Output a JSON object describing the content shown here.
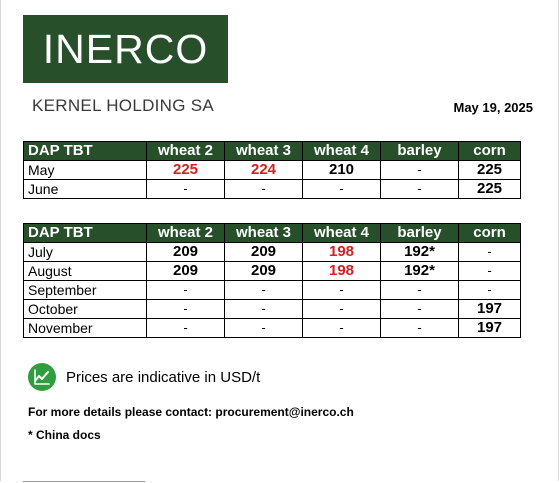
{
  "brand": {
    "logo_text": "INERCO",
    "colors": {
      "primary": "#264f2a",
      "accent_red": "#d42020",
      "icon_green": "#2f9e3e"
    }
  },
  "header": {
    "company": "KERNEL HOLDING SA",
    "date": "May 19, 2025"
  },
  "tables": [
    {
      "columns": [
        "DAP TBT",
        "wheat 2",
        "wheat 3",
        "wheat 4",
        "barley",
        "corn"
      ],
      "rows": [
        {
          "month": "May",
          "cells": [
            {
              "v": "225",
              "red": true
            },
            {
              "v": "224",
              "red": true
            },
            {
              "v": "210",
              "red": false
            },
            {
              "v": "-",
              "red": false
            },
            {
              "v": "225",
              "red": false
            }
          ]
        },
        {
          "month": "June",
          "cells": [
            {
              "v": "-",
              "red": false
            },
            {
              "v": "-",
              "red": false
            },
            {
              "v": "-",
              "red": false
            },
            {
              "v": "-",
              "red": false
            },
            {
              "v": "225",
              "red": false
            }
          ]
        }
      ]
    },
    {
      "columns": [
        "DAP TBT",
        "wheat 2",
        "wheat 3",
        "wheat 4",
        "barley",
        "corn"
      ],
      "rows": [
        {
          "month": "July",
          "cells": [
            {
              "v": "209",
              "red": false
            },
            {
              "v": "209",
              "red": false
            },
            {
              "v": "198",
              "red": true
            },
            {
              "v": "192*",
              "red": false
            },
            {
              "v": "-",
              "red": false
            }
          ]
        },
        {
          "month": "August",
          "cells": [
            {
              "v": "209",
              "red": false
            },
            {
              "v": "209",
              "red": false
            },
            {
              "v": "198",
              "red": true
            },
            {
              "v": "192*",
              "red": false
            },
            {
              "v": "-",
              "red": false
            }
          ]
        },
        {
          "month": "September",
          "cells": [
            {
              "v": "-",
              "red": false
            },
            {
              "v": "-",
              "red": false
            },
            {
              "v": "-",
              "red": false
            },
            {
              "v": "-",
              "red": false
            },
            {
              "v": "-",
              "red": false
            }
          ]
        },
        {
          "month": "October",
          "cells": [
            {
              "v": "-",
              "red": false
            },
            {
              "v": "-",
              "red": false
            },
            {
              "v": "-",
              "red": false
            },
            {
              "v": "-",
              "red": false
            },
            {
              "v": "197",
              "red": false
            }
          ]
        },
        {
          "month": "November",
          "cells": [
            {
              "v": "-",
              "red": false
            },
            {
              "v": "-",
              "red": false
            },
            {
              "v": "-",
              "red": false
            },
            {
              "v": "-",
              "red": false
            },
            {
              "v": "197",
              "red": false
            }
          ]
        }
      ]
    }
  ],
  "notes": {
    "icon": "trend-chart-icon",
    "indicative": "Prices are indicative  in USD/t",
    "contact": "For more details please contact: procurement@inerco.ch",
    "footnote": "* China docs"
  }
}
